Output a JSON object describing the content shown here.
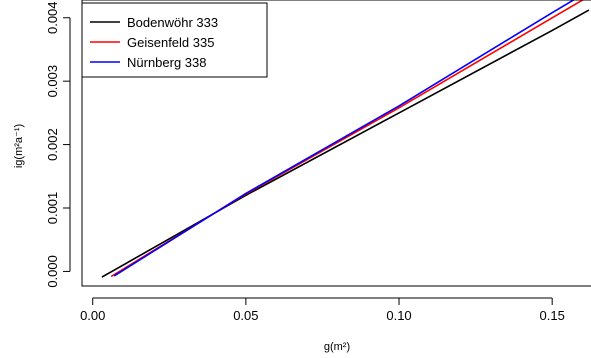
{
  "chart_data": {
    "type": "line",
    "xlabel": "g(m²)",
    "ylabel": "ig(m²a⁻¹)",
    "xlim": [
      -0.0035,
      0.163
    ],
    "ylim": [
      -0.00023,
      0.00428
    ],
    "x_ticks": [
      0.0,
      0.05,
      0.1,
      0.15
    ],
    "x_tick_labels": [
      "0.00",
      "0.05",
      "0.10",
      "0.15"
    ],
    "y_ticks": [
      0.0,
      0.001,
      0.002,
      0.003,
      0.004
    ],
    "y_tick_labels": [
      "0.000",
      "0.001",
      "0.002",
      "0.003",
      "0.004"
    ],
    "grid": false,
    "legend_position": "top-left",
    "series": [
      {
        "name": "Bodenwöhr 333",
        "color": "#000000",
        "x": [
          0.003,
          0.05,
          0.1,
          0.15,
          0.162
        ],
        "y": [
          -9e-05,
          0.0012,
          0.0025,
          0.0038,
          0.00412
        ]
      },
      {
        "name": "Geisenfeld 335",
        "color": "#ff0000",
        "x": [
          0.006,
          0.05,
          0.1,
          0.15,
          0.161
        ],
        "y": [
          -8e-05,
          0.00122,
          0.00258,
          0.004,
          0.00431
        ]
      },
      {
        "name": "Nürnberg 338",
        "color": "#0000ff",
        "x": [
          0.007,
          0.05,
          0.1,
          0.15,
          0.158
        ],
        "y": [
          -7e-05,
          0.00123,
          0.00261,
          0.00408,
          0.00431
        ]
      }
    ]
  }
}
